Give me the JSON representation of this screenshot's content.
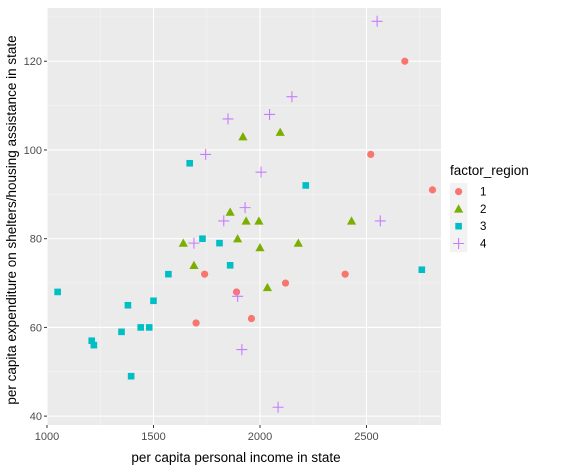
{
  "chart_data": {
    "type": "scatter",
    "xlabel": "per capita personal income in state",
    "ylabel": "per capita expenditure on shelters/housing assistance in state",
    "xlim": [
      1000,
      2850
    ],
    "ylim": [
      38,
      132
    ],
    "x_ticks": [
      1000,
      1500,
      2000,
      2500
    ],
    "y_ticks": [
      40,
      60,
      80,
      100,
      120
    ],
    "x_tick_labels": [
      "1000",
      "1500",
      "2000",
      "2500"
    ],
    "y_tick_labels": [
      "40",
      "60",
      "80",
      "100",
      "120"
    ],
    "grid": true,
    "legend": {
      "title": "factor_region",
      "position": "right"
    },
    "series": [
      {
        "name": "1",
        "shape": "circle",
        "color": "#F8766D",
        "points": [
          [
            1700,
            61
          ],
          [
            1740,
            72
          ],
          [
            1890,
            68
          ],
          [
            1960,
            62
          ],
          [
            2120,
            70
          ],
          [
            2400,
            72
          ],
          [
            2520,
            99
          ],
          [
            2680,
            120
          ],
          [
            2810,
            91
          ]
        ]
      },
      {
        "name": "2",
        "shape": "triangle",
        "color": "#7CAE00",
        "points": [
          [
            1640,
            79
          ],
          [
            1690,
            74
          ],
          [
            1860,
            86
          ],
          [
            1895,
            80
          ],
          [
            1920,
            103
          ],
          [
            1935,
            84
          ],
          [
            1995,
            84
          ],
          [
            2000,
            78
          ],
          [
            2035,
            69
          ],
          [
            2095,
            104
          ],
          [
            2180,
            79
          ],
          [
            2430,
            84
          ]
        ]
      },
      {
        "name": "3",
        "shape": "square",
        "color": "#00BFC4",
        "points": [
          [
            1050,
            68
          ],
          [
            1210,
            57
          ],
          [
            1220,
            56
          ],
          [
            1350,
            59
          ],
          [
            1380,
            65
          ],
          [
            1395,
            49
          ],
          [
            1440,
            60
          ],
          [
            1480,
            60
          ],
          [
            1500,
            66
          ],
          [
            1570,
            72
          ],
          [
            1670,
            97
          ],
          [
            1730,
            80
          ],
          [
            1810,
            79
          ],
          [
            1860,
            74
          ],
          [
            2215,
            92
          ],
          [
            2760,
            73
          ]
        ]
      },
      {
        "name": "4",
        "shape": "plus",
        "color": "#C77CFF",
        "points": [
          [
            1690,
            79
          ],
          [
            1745,
            99
          ],
          [
            1830,
            84
          ],
          [
            1850,
            107
          ],
          [
            1895,
            67
          ],
          [
            1915,
            55
          ],
          [
            1930,
            87
          ],
          [
            2005,
            95
          ],
          [
            2045,
            108
          ],
          [
            2085,
            42
          ],
          [
            2150,
            112
          ],
          [
            2550,
            129
          ],
          [
            2565,
            84
          ]
        ]
      }
    ]
  }
}
